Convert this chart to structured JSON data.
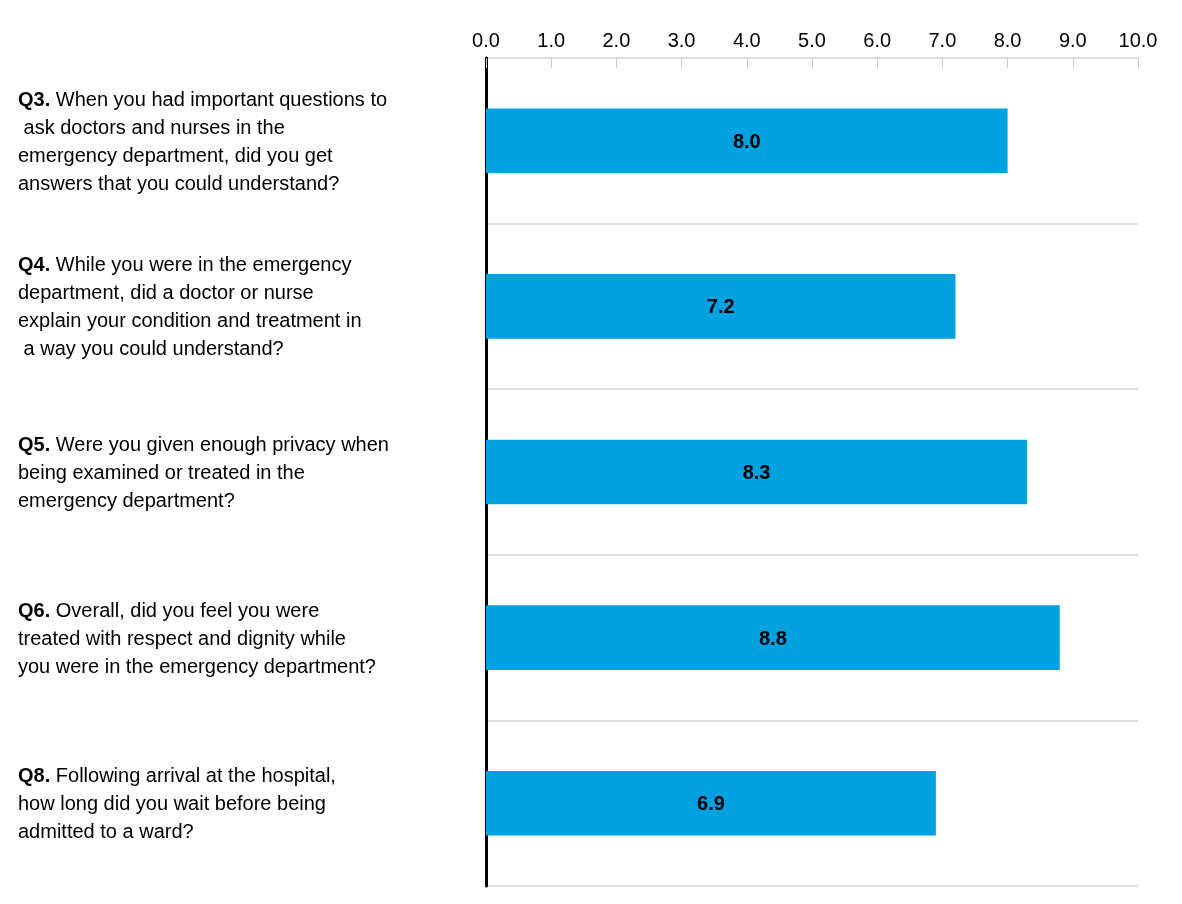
{
  "chart_data": {
    "type": "bar",
    "orientation": "horizontal",
    "categories": [
      "Q3. When you had important questions to ask doctors and nurses in the emergency department, did you get answers that you could understand?",
      "Q4. While you were in the emergency department, did a doctor or nurse explain your condition and treatment in a way you could understand?",
      "Q5. Were you given enough privacy when being examined or treated in the emergency department?",
      "Q6. Overall, did you feel you were treated with respect and dignity while you were in the emergency department?",
      "Q8. Following arrival at the hospital, how long did you wait before being admitted to a ward?"
    ],
    "values": [
      8.0,
      7.2,
      8.3,
      8.8,
      6.9
    ],
    "color": "#00a1e0",
    "xlim": [
      0,
      10
    ],
    "xticks": [
      {
        "value": 0,
        "label": "0.0"
      },
      {
        "value": 1,
        "label": "1.0"
      },
      {
        "value": 2,
        "label": "2.0"
      },
      {
        "value": 3,
        "label": "3.0"
      },
      {
        "value": 4,
        "label": "4.0"
      },
      {
        "value": 5,
        "label": "5.0"
      },
      {
        "value": 6,
        "label": "6.0"
      },
      {
        "value": 7,
        "label": "7.0"
      },
      {
        "value": 8,
        "label": "8.0"
      },
      {
        "value": 9,
        "label": "9.0"
      },
      {
        "value": 10,
        "label": "10.0"
      }
    ],
    "grid": "y",
    "value_labels": [
      "8.0",
      "7.2",
      "8.3",
      "8.8",
      "6.9"
    ]
  }
}
